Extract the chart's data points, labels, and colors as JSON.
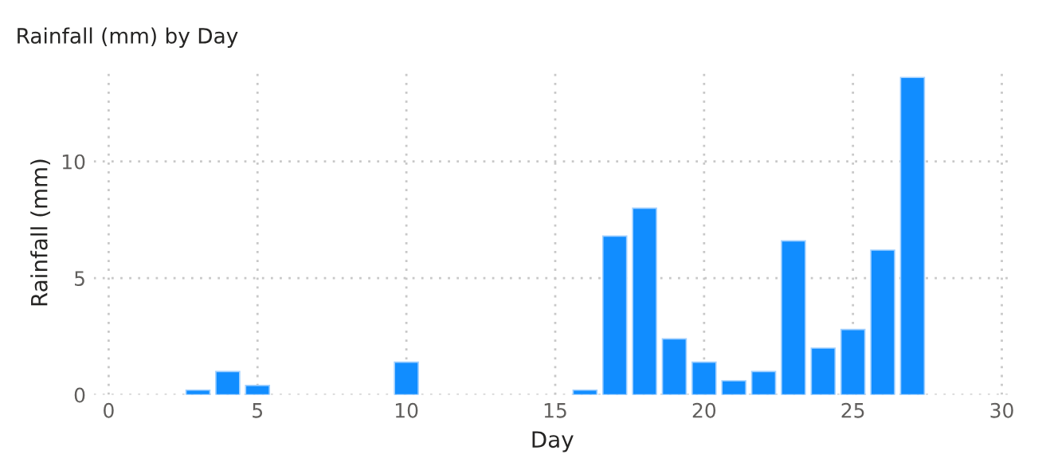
{
  "chart_data": {
    "type": "bar",
    "title": "Rainfall (mm) by Day",
    "xlabel": "Day",
    "ylabel": "Rainfall (mm)",
    "x": [
      3,
      4,
      5,
      10,
      16,
      17,
      18,
      19,
      20,
      21,
      22,
      23,
      24,
      25,
      26,
      27
    ],
    "series": [
      {
        "color": "#118dff",
        "values": [
          0.2,
          1.0,
          0.4,
          1.4,
          0.2,
          6.8,
          8.0,
          2.4,
          1.4,
          0.6,
          1.0,
          6.6,
          2.0,
          2.8,
          6.2,
          13.6
        ]
      }
    ],
    "xlim": [
      -0.5,
      30.3
    ],
    "xticks": [
      0,
      5,
      10,
      15,
      20,
      25,
      30
    ],
    "ylim": [
      0,
      13.9
    ],
    "yticks": [
      0,
      5,
      10
    ],
    "grid": true
  }
}
